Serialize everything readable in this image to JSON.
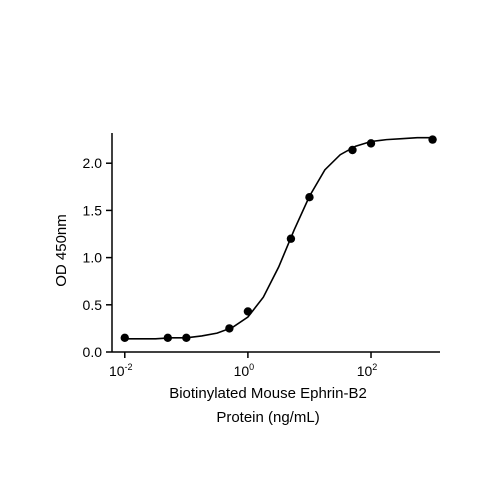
{
  "chart_data": {
    "type": "scatter",
    "x": [
      0.01,
      0.05,
      0.1,
      0.5,
      1,
      5,
      10,
      50,
      100,
      1000
    ],
    "values": [
      0.15,
      0.15,
      0.15,
      0.25,
      0.43,
      1.2,
      1.64,
      2.14,
      2.21,
      2.25
    ],
    "color": "#000000",
    "curve": {
      "x": [
        0.01,
        0.0178,
        0.0316,
        0.0562,
        0.1,
        0.178,
        0.316,
        0.562,
        1,
        1.78,
        3.16,
        5.62,
        10,
        17.8,
        31.6,
        56.2,
        100,
        178,
        316,
        562,
        1000
      ],
      "values": [
        0.14,
        0.14,
        0.14,
        0.15,
        0.15,
        0.17,
        0.2,
        0.26,
        0.37,
        0.58,
        0.9,
        1.29,
        1.65,
        1.93,
        2.09,
        2.18,
        2.23,
        2.25,
        2.26,
        2.27,
        2.27
      ]
    },
    "xscale": "log",
    "xlim": [
      0.0062,
      1320
    ],
    "ylim": [
      0,
      2.32
    ],
    "xticks": [
      {
        "value": 0.01,
        "label": "10",
        "exponent": "-2"
      },
      {
        "value": 1,
        "label": "10",
        "exponent": "0"
      },
      {
        "value": 100,
        "label": "10",
        "exponent": "2"
      }
    ],
    "yticks": [
      {
        "value": 0,
        "label": "0.0"
      },
      0.5,
      {
        "value": 1,
        "label": "1.0"
      },
      1.5,
      {
        "value": 2,
        "label": "2.0"
      }
    ],
    "xlabel": [
      "Biotinylated Mouse Ephrin-B2",
      "Protein (ng/mL)"
    ],
    "ylabel": "OD 450nm",
    "grid": false
  }
}
